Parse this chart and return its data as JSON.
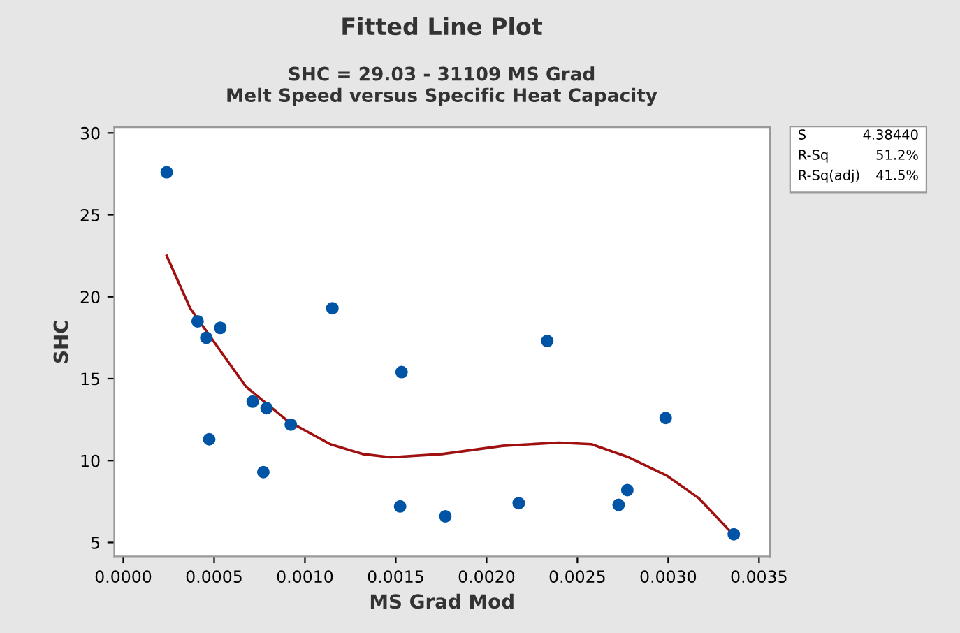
{
  "chart_data": {
    "type": "scatter",
    "title": "Fitted Line Plot",
    "subtitle": "SHC = 29.03 - 31109 MS Grad\nMelt Speed versus Specific Heat Capacity",
    "xlabel": "MS Grad Mod",
    "ylabel": "SHC",
    "annotations": [
      "S",
      "4.38440",
      "R-Sq",
      "51.2%",
      "R-Sq(adj)",
      "41.5%"
    ],
    "series": [
      {
        "color": "#0054a6",
        "marker": "circle",
        "x": [
          0.000239,
          0.000409,
          0.000457,
          0.000534,
          0.000473,
          0.000712,
          0.000789,
          0.000771,
          0.000922,
          0.001151,
          0.001532,
          0.001524,
          0.001773,
          0.002177,
          0.002334,
          0.002727,
          0.002775,
          0.002986,
          0.003361
        ],
        "values": [
          27.6,
          18.5,
          17.5,
          18.1,
          11.3,
          13.6,
          13.2,
          9.3,
          12.2,
          19.3,
          15.4,
          7.2,
          6.6,
          7.4,
          17.3,
          7.3,
          8.2,
          12.6,
          5.5
        ]
      },
      {
        "type": "line",
        "color": "#a01010",
        "marker": "none",
        "line_style": "solid",
        "x": [
          0.000239,
          0.000368,
          0.000547,
          0.000676,
          0.000907,
          0.001139,
          0.001318,
          0.001472,
          0.001755,
          0.002089,
          0.002243,
          0.002398,
          0.002577,
          0.002783,
          0.002989,
          0.003169,
          0.003348
        ],
        "values": [
          22.5,
          19.3,
          16.5,
          14.5,
          12.4,
          11.0,
          10.4,
          10.2,
          10.4,
          10.9,
          11.0,
          11.1,
          11.0,
          10.2,
          9.1,
          7.7,
          5.6
        ]
      }
    ],
    "xlim": [
      -5e-05,
      0.00356
    ],
    "xticks": [
      {
        "value": 0,
        "label": "0.0000"
      },
      {
        "value": 0.0005,
        "label": "0.0005"
      },
      {
        "value": 0.001,
        "label": "0.0010"
      },
      {
        "value": 0.0015,
        "label": "0.0015"
      },
      {
        "value": 0.002,
        "label": "0.0020"
      },
      {
        "value": 0.0025,
        "label": "0.0025"
      },
      {
        "value": 0.003,
        "label": "0.0030"
      },
      {
        "value": 0.0035,
        "label": "0.0035"
      }
    ],
    "ylim": [
      4.15,
      30.35
    ],
    "yticks": [
      5,
      10,
      15,
      20,
      25,
      30
    ],
    "grid": false
  }
}
